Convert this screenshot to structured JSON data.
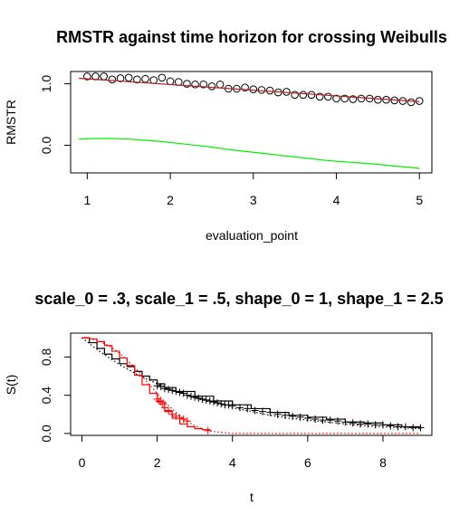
{
  "chart_data": [
    {
      "type": "scatter",
      "title": "RMSTR against time horizon for crossing Weibulls",
      "xlabel": "evaluation_point",
      "ylabel": "RMSTR",
      "xlim": [
        0.8,
        5.15
      ],
      "ylim": [
        -0.45,
        1.2
      ],
      "xticks": [
        "1",
        "2",
        "3",
        "4",
        "5"
      ],
      "yticks": [
        "0.0",
        "1.0"
      ],
      "series": [
        {
          "style": "points",
          "color": "#000000",
          "x": [
            1.0,
            1.1,
            1.2,
            1.3,
            1.4,
            1.5,
            1.6,
            1.7,
            1.8,
            1.9,
            2.0,
            2.1,
            2.2,
            2.3,
            2.4,
            2.5,
            2.6,
            2.7,
            2.8,
            2.9,
            3.0,
            3.1,
            3.2,
            3.3,
            3.4,
            3.5,
            3.6,
            3.7,
            3.8,
            3.9,
            4.0,
            4.1,
            4.2,
            4.3,
            4.4,
            4.5,
            4.6,
            4.7,
            4.8,
            4.9,
            5.0
          ],
          "y": [
            1.12,
            1.12,
            1.12,
            1.07,
            1.09,
            1.1,
            1.07,
            1.08,
            1.06,
            1.1,
            1.04,
            1.03,
            1.0,
            0.99,
            0.99,
            0.96,
            0.99,
            0.92,
            0.92,
            0.94,
            0.91,
            0.9,
            0.89,
            0.86,
            0.87,
            0.82,
            0.82,
            0.82,
            0.79,
            0.79,
            0.76,
            0.76,
            0.75,
            0.76,
            0.76,
            0.74,
            0.74,
            0.73,
            0.72,
            0.7,
            0.72
          ]
        },
        {
          "style": "line",
          "color": "#b22222",
          "x": [
            0.9,
            5.0
          ],
          "y": [
            1.09,
            0.71
          ]
        },
        {
          "style": "line",
          "color": "#00ee00",
          "x": [
            0.9,
            1.1,
            1.3,
            1.5,
            1.7,
            1.9,
            2.1,
            2.3,
            2.5,
            2.7,
            2.9,
            3.1,
            3.3,
            3.5,
            3.7,
            3.9,
            4.1,
            4.3,
            4.5,
            4.7,
            4.9,
            5.0
          ],
          "y": [
            0.1,
            0.11,
            0.11,
            0.1,
            0.08,
            0.06,
            0.03,
            0.0,
            -0.03,
            -0.07,
            -0.1,
            -0.13,
            -0.16,
            -0.19,
            -0.22,
            -0.25,
            -0.27,
            -0.29,
            -0.31,
            -0.34,
            -0.36,
            -0.38
          ]
        }
      ]
    },
    {
      "type": "line",
      "title": "scale_0 = .3, scale_1 = .5, shape_0 = 1, shape_1 = 2.5",
      "xlabel": "t",
      "ylabel": "S(t)",
      "xlim": [
        -0.3,
        9.3
      ],
      "ylim": [
        -0.02,
        1.05
      ],
      "xticks": [
        "0",
        "2",
        "4",
        "6",
        "8"
      ],
      "yticks": [
        "0.0",
        "0.4",
        "0.8"
      ],
      "series": [
        {
          "style": "step",
          "color": "#000000",
          "x": [
            0,
            0.2,
            0.4,
            0.6,
            0.8,
            1.0,
            1.2,
            1.4,
            1.6,
            1.8,
            2.0,
            2.2,
            2.5,
            3.0,
            3.5,
            4.0,
            4.5,
            5.0,
            5.5,
            6.0,
            6.5,
            7.0,
            7.5,
            8.0,
            8.5,
            9.0
          ],
          "y": [
            1.0,
            0.95,
            0.89,
            0.83,
            0.78,
            0.73,
            0.7,
            0.65,
            0.6,
            0.56,
            0.52,
            0.48,
            0.44,
            0.39,
            0.34,
            0.3,
            0.26,
            0.22,
            0.19,
            0.17,
            0.15,
            0.12,
            0.11,
            0.09,
            0.07,
            0.06
          ]
        },
        {
          "style": "dotted",
          "color": "#000000",
          "x": [
            0,
            0.5,
            1.0,
            1.5,
            2.0,
            2.5,
            3.0,
            3.5,
            4.0,
            4.5,
            5.0,
            5.5,
            6.0,
            6.5,
            7.0,
            7.5,
            8.0,
            8.5,
            9.0
          ],
          "y": [
            1.0,
            0.85,
            0.72,
            0.61,
            0.52,
            0.44,
            0.37,
            0.32,
            0.27,
            0.23,
            0.19,
            0.16,
            0.14,
            0.12,
            0.1,
            0.08,
            0.07,
            0.06,
            0.05
          ]
        },
        {
          "style": "step",
          "color": "#ff0000",
          "x": [
            0,
            0.2,
            0.4,
            0.6,
            0.8,
            1.0,
            1.2,
            1.4,
            1.6,
            1.8,
            2.0,
            2.2,
            2.4,
            2.6,
            2.8,
            3.0,
            3.2,
            3.4
          ],
          "y": [
            1.0,
            0.99,
            0.96,
            0.92,
            0.86,
            0.79,
            0.71,
            0.61,
            0.51,
            0.42,
            0.33,
            0.23,
            0.16,
            0.1,
            0.07,
            0.05,
            0.04,
            0.03
          ]
        },
        {
          "style": "dotted",
          "color": "#ff0000",
          "x": [
            0,
            0.25,
            0.5,
            0.75,
            1.0,
            1.25,
            1.5,
            1.75,
            2.0,
            2.25,
            2.5,
            2.75,
            3.0,
            3.25,
            3.5,
            3.75,
            4.0,
            4.5,
            5.0,
            6.0,
            7.0,
            8.0,
            9.0
          ],
          "y": [
            1.0,
            0.99,
            0.96,
            0.91,
            0.84,
            0.75,
            0.65,
            0.53,
            0.42,
            0.31,
            0.22,
            0.14,
            0.08,
            0.04,
            0.02,
            0.01,
            0.0,
            0.0,
            0.0,
            0.0,
            0.0,
            0.0,
            0.0
          ]
        }
      ],
      "censor_marks": [
        {
          "color": "#000000",
          "x": [
            2.0,
            2.1,
            2.2,
            2.3,
            2.4,
            2.5,
            2.6,
            2.7,
            2.8,
            2.9,
            3.0,
            3.1,
            3.2,
            3.3,
            3.4,
            3.5,
            3.6,
            3.7,
            3.8,
            3.9,
            4.0,
            4.2,
            4.4,
            4.6,
            4.8,
            5.0,
            5.2,
            5.4,
            5.6,
            5.8,
            6.0,
            6.2,
            6.4,
            6.6,
            6.8,
            7.0,
            7.2,
            7.4,
            7.6,
            7.8,
            8.0,
            8.2,
            8.4,
            8.6,
            8.8,
            9.0
          ],
          "y": [
            0.5,
            0.49,
            0.47,
            0.46,
            0.45,
            0.44,
            0.43,
            0.42,
            0.4,
            0.39,
            0.38,
            0.37,
            0.36,
            0.35,
            0.34,
            0.33,
            0.32,
            0.31,
            0.3,
            0.3,
            0.29,
            0.27,
            0.26,
            0.24,
            0.23,
            0.22,
            0.2,
            0.19,
            0.18,
            0.17,
            0.16,
            0.15,
            0.14,
            0.14,
            0.13,
            0.12,
            0.11,
            0.1,
            0.1,
            0.09,
            0.09,
            0.08,
            0.07,
            0.07,
            0.06,
            0.06
          ]
        },
        {
          "color": "#ff0000",
          "x": [
            2.0,
            2.05,
            2.1,
            2.15,
            2.2,
            2.3,
            2.4,
            2.5,
            2.6,
            2.7,
            2.8,
            3.35
          ],
          "y": [
            0.36,
            0.34,
            0.33,
            0.31,
            0.27,
            0.24,
            0.2,
            0.18,
            0.16,
            0.15,
            0.13,
            0.03
          ]
        }
      ]
    }
  ]
}
